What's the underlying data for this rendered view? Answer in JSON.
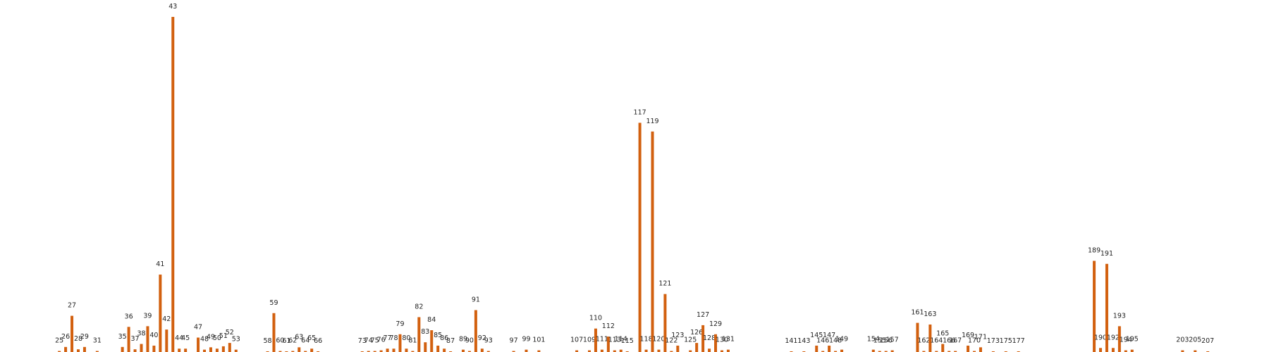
{
  "chart_data": {
    "type": "bar",
    "color": "#d2600f",
    "x": [
      25,
      26,
      27,
      28,
      29,
      31,
      35,
      36,
      37,
      38,
      39,
      40,
      41,
      42,
      43,
      44,
      45,
      47,
      48,
      49,
      50,
      51,
      52,
      53,
      58,
      59,
      60,
      61,
      62,
      63,
      64,
      65,
      66,
      73,
      74,
      75,
      76,
      77,
      78,
      79,
      80,
      81,
      82,
      83,
      84,
      85,
      86,
      87,
      89,
      90,
      91,
      92,
      93,
      97,
      99,
      101,
      107,
      109,
      110,
      111,
      112,
      113,
      114,
      115,
      117,
      118,
      119,
      120,
      121,
      122,
      123,
      125,
      126,
      127,
      128,
      129,
      130,
      131,
      141,
      143,
      145,
      146,
      147,
      148,
      149,
      154,
      155,
      156,
      157,
      161,
      162,
      163,
      164,
      165,
      166,
      167,
      169,
      170,
      171,
      173,
      175,
      177,
      189,
      190,
      191,
      192,
      193,
      194,
      195,
      203,
      205,
      207
    ],
    "values": [
      0.3,
      1.5,
      10.8,
      0.8,
      1.5,
      0.3,
      1.5,
      7.5,
      0.8,
      2.4,
      7.7,
      1.9,
      23.1,
      6.7,
      100,
      1,
      1,
      4.3,
      0.7,
      1.4,
      1,
      1.7,
      2.7,
      0.7,
      0.2,
      11.6,
      0.3,
      0.2,
      0.3,
      1.4,
      0.3,
      1,
      0.2,
      0.2,
      0.3,
      0.3,
      0.5,
      1,
      1,
      5.3,
      1,
      0.3,
      10.4,
      2.9,
      6.5,
      1.9,
      1,
      0.2,
      0.7,
      0.3,
      12.5,
      1,
      0.3,
      0.3,
      0.7,
      0.5,
      0.5,
      0.5,
      7,
      0.7,
      4.6,
      0.5,
      0.7,
      0.2,
      68.4,
      0.7,
      65.8,
      0.7,
      17.3,
      0.3,
      1.9,
      0.5,
      2.7,
      8,
      1,
      5.3,
      0.5,
      0.7,
      0.2,
      0.2,
      1.9,
      0.3,
      1.9,
      0.3,
      0.7,
      0.7,
      0.3,
      0.3,
      0.5,
      8.7,
      0.3,
      8.2,
      0.3,
      2.4,
      0.3,
      0.3,
      1.9,
      0.3,
      1.4,
      0.2,
      0.2,
      0.2,
      27.2,
      1.2,
      26.3,
      1.2,
      7.7,
      0.5,
      0.7,
      0.5,
      0.5,
      0.2
    ],
    "xlim": [
      15.6,
      216.7
    ],
    "ylim": [
      0,
      100
    ]
  }
}
